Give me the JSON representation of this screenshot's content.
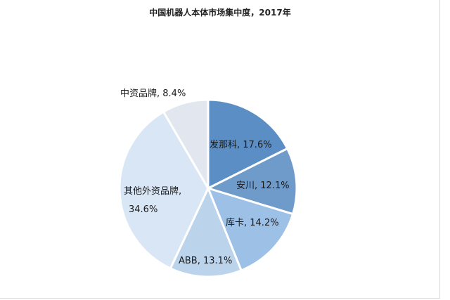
{
  "chart_data": {
    "type": "pie",
    "title": "中国机器人本体市场集中度，2017年",
    "slices": [
      {
        "label": "发那科, 17.6%",
        "value": 17.6,
        "color": "#5b8ec4"
      },
      {
        "label": "安川, 12.1%",
        "value": 12.1,
        "color": "#6f9bcb"
      },
      {
        "label": "库卡, 14.2%",
        "value": 14.2,
        "color": "#9dc0e6"
      },
      {
        "label": "ABB, 13.1%",
        "value": 13.1,
        "color": "#bcd3ec"
      },
      {
        "label": "其他外资品牌,",
        "label_line2": "34.6%",
        "value": 34.6,
        "color": "#d9e6f5"
      },
      {
        "label": "中资品牌, 8.4%",
        "value": 8.4,
        "color": "#e1e6ef"
      }
    ],
    "legend": "none"
  }
}
